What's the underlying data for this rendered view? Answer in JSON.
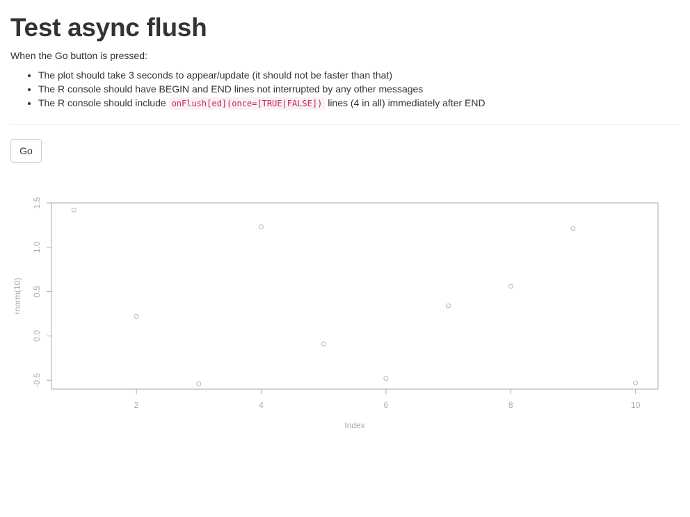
{
  "page": {
    "title": "Test async flush",
    "intro": "When the Go button is pressed:",
    "bullets": [
      {
        "text": "The plot should take 3 seconds to appear/update (it should not be faster than that)"
      },
      {
        "text": "The R console should have BEGIN and END lines not interrupted by any other messages"
      },
      {
        "text_before": "The R console should include ",
        "code": "onFlush[ed](once=[TRUE|FALSE])",
        "text_after": " lines (4 in all) immediately after END"
      }
    ],
    "go_label": "Go"
  },
  "chart_data": {
    "type": "scatter",
    "x": [
      1,
      2,
      3,
      4,
      5,
      6,
      7,
      8,
      9,
      10
    ],
    "y": [
      1.42,
      0.22,
      -0.54,
      1.23,
      -0.09,
      -0.48,
      0.34,
      0.56,
      1.21,
      -0.53
    ],
    "xlabel": "Index",
    "ylabel": "rnorm(10)",
    "xticks": [
      2,
      4,
      6,
      8,
      10
    ],
    "yticks": [
      "-0.5",
      "0.0",
      "0.5",
      "1.0",
      "1.5"
    ],
    "xlim": [
      0.64,
      10.36
    ],
    "ylim": [
      -0.6,
      1.5
    ],
    "point_color": "#b5b5b5",
    "axis_color": "#aaaaaa",
    "grid": false
  }
}
